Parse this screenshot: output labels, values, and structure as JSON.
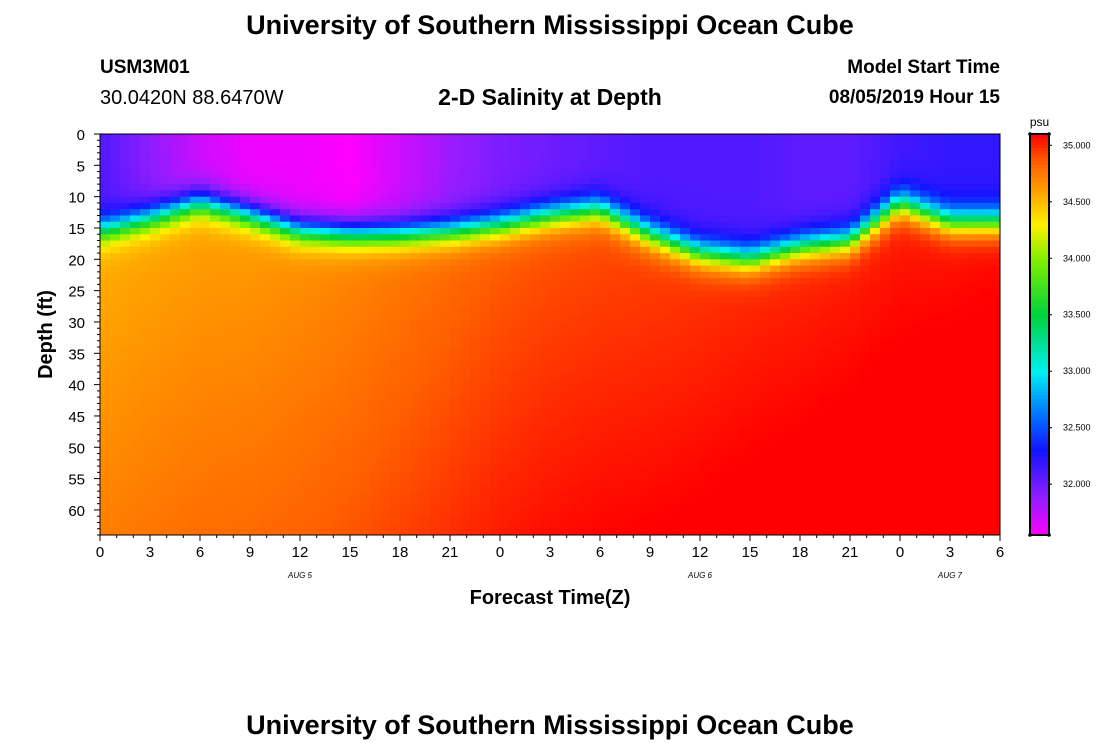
{
  "header": {
    "title": "University of Southern Mississippi Ocean Cube",
    "station_id": "USM3M01",
    "coordinates": "30.0420N 88.6470W",
    "subtitle": "2-D Salinity at Depth",
    "model_start_label": "Model Start Time",
    "model_start_value": "08/05/2019 Hour 15"
  },
  "footer": {
    "title": "University of Southern Mississippi Ocean Cube"
  },
  "chart_data": {
    "type": "heatmap",
    "title": "2-D Salinity at Depth",
    "xlabel": "Forecast Time(Z)",
    "ylabel": "Depth (ft)",
    "x_tick_labels": [
      "0",
      "3",
      "6",
      "9",
      "12",
      "15",
      "18",
      "21",
      "0",
      "3",
      "6",
      "9",
      "12",
      "15",
      "18",
      "21",
      "0",
      "3",
      "6"
    ],
    "x_day_labels": [
      {
        "text": "AUG 5",
        "at_tick": 4
      },
      {
        "text": "AUG 6",
        "at_tick": 12
      },
      {
        "text": "AUG 7",
        "at_tick": 17
      }
    ],
    "y_ticks": [
      0,
      5,
      10,
      15,
      20,
      25,
      30,
      35,
      40,
      45,
      50,
      55,
      60
    ],
    "ylim": [
      0,
      64
    ],
    "x_hours": [
      0,
      3,
      6,
      9,
      12,
      15,
      18,
      21,
      24,
      27,
      30,
      33,
      36,
      39,
      42,
      45,
      48,
      51,
      54
    ],
    "halocline_depth_ft": [
      15.5,
      13.5,
      11,
      13,
      15.5,
      16,
      16,
      15.5,
      14.5,
      13,
      12,
      16,
      19,
      20,
      18,
      17,
      11,
      14,
      14
    ],
    "surface_salinity_psu": [
      32.1,
      31.9,
      31.7,
      31.6,
      31.6,
      31.55,
      31.7,
      31.85,
      31.95,
      32.0,
      32.05,
      32.1,
      32.1,
      32.1,
      32.05,
      32.05,
      32.15,
      32.2,
      32.2
    ],
    "deep_salinity_psu": [
      34.55,
      34.58,
      34.6,
      34.62,
      34.66,
      34.7,
      34.75,
      34.8,
      34.85,
      34.88,
      34.9,
      34.93,
      34.96,
      34.99,
      35.0,
      35.02,
      35.03,
      35.05,
      35.07
    ],
    "colorbar": {
      "unit": "psu",
      "min": 31.55,
      "max": 35.1,
      "tick_values": [
        32.0,
        32.5,
        33.0,
        33.5,
        34.0,
        34.5,
        35.0
      ],
      "tick_labels": [
        "32.000",
        "32.500",
        "33.000",
        "33.500",
        "34.000",
        "34.500",
        "35.000"
      ]
    }
  }
}
